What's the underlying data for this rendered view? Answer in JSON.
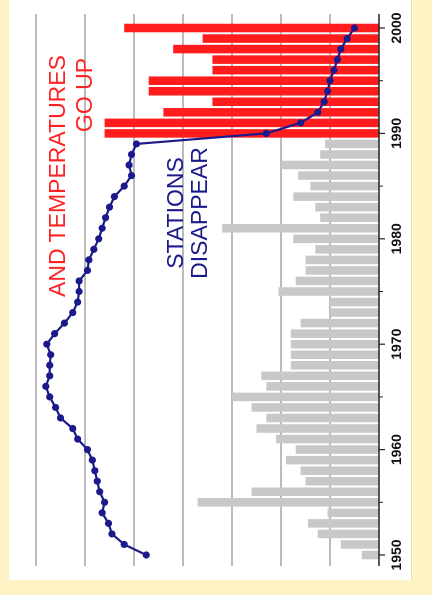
{
  "chart_data": {
    "type": "bar",
    "orientation": "rotated-90",
    "x_ticks": [
      "1950",
      "1960",
      "1970",
      "1980",
      "1990",
      "2000"
    ],
    "grid": true,
    "annotations": [
      {
        "lines": [
          "AND TEMPERATURES",
          "GO UP"
        ],
        "color": "#ff2222"
      },
      {
        "lines": [
          "STATIONS",
          "DISAPPEAR"
        ],
        "color": "#1a1a8c"
      }
    ],
    "series": [
      {
        "kind": "bar",
        "bar_colors": {
          "before_1990": "#c8c8c8",
          "from_1990": "#ff1c1c"
        },
        "years": [
          1950,
          1951,
          1952,
          1953,
          1954,
          1955,
          1956,
          1957,
          1958,
          1959,
          1960,
          1961,
          1962,
          1963,
          1964,
          1965,
          1966,
          1967,
          1968,
          1969,
          1970,
          1971,
          1972,
          1973,
          1974,
          1975,
          1976,
          1977,
          1978,
          1979,
          1980,
          1981,
          1982,
          1983,
          1984,
          1985,
          1986,
          1987,
          1988,
          1989,
          1990,
          1991,
          1992,
          1993,
          1994,
          1995,
          1996,
          1997,
          1998,
          1999,
          2000
        ],
        "values": [
          0.35,
          0.78,
          1.25,
          1.45,
          1.05,
          3.7,
          2.6,
          1.5,
          1.6,
          1.9,
          1.7,
          2.1,
          2.5,
          2.3,
          2.6,
          3.0,
          2.3,
          2.4,
          1.8,
          1.8,
          1.8,
          1.8,
          1.6,
          1.0,
          1.0,
          2.05,
          1.7,
          1.5,
          1.5,
          1.3,
          1.75,
          3.2,
          1.2,
          1.3,
          1.75,
          1.4,
          1.65,
          2.0,
          1.2,
          1.1,
          5.6,
          5.6,
          4.4,
          3.4,
          4.7,
          4.7,
          3.4,
          3.4,
          4.2,
          3.6,
          5.2
        ]
      },
      {
        "kind": "line",
        "color": "#1a1a8c",
        "years": [
          1950,
          1951,
          1952,
          1953,
          1954,
          1955,
          1956,
          1957,
          1958,
          1959,
          1960,
          1961,
          1962,
          1963,
          1964,
          1965,
          1966,
          1967,
          1968,
          1969,
          1970,
          1971,
          1972,
          1973,
          1974,
          1975,
          1976,
          1977,
          1978,
          1979,
          1980,
          1981,
          1982,
          1983,
          1984,
          1985,
          1986,
          1987,
          1988,
          1989,
          1990,
          1991,
          1992,
          1993,
          1994,
          1995,
          1996,
          1997,
          1998,
          1999,
          2000
        ],
        "values": [
          4.75,
          5.2,
          5.45,
          5.52,
          5.65,
          5.6,
          5.7,
          5.75,
          5.8,
          5.85,
          5.95,
          6.15,
          6.25,
          6.5,
          6.6,
          6.72,
          6.8,
          6.72,
          6.72,
          6.7,
          6.78,
          6.62,
          6.42,
          6.25,
          6.15,
          6.12,
          6.12,
          5.95,
          5.92,
          5.82,
          5.72,
          5.65,
          5.58,
          5.5,
          5.4,
          5.2,
          5.05,
          5.1,
          5.05,
          4.95,
          2.3,
          1.6,
          1.25,
          1.12,
          1.05,
          1.0,
          0.92,
          0.85,
          0.78,
          0.65,
          0.5
        ]
      }
    ]
  }
}
